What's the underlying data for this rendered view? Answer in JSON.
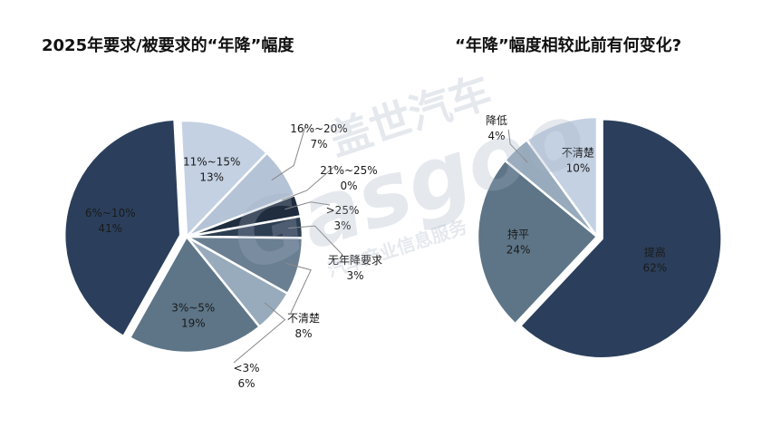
{
  "titles": {
    "left": "2025年要求/被要求的“年降”幅度",
    "right": "“年降”幅度相较此前有何变化?"
  },
  "watermark": {
    "brand_cn": "盖世汽车",
    "brand_en": "Gasgoo",
    "sub": "汽车产业信息服务"
  },
  "colors": {
    "navy": "#2b3f5c",
    "slate": "#5d7587",
    "gray_blue": "#98abbc",
    "light_blue": "#c4d1e3",
    "dark": "#1f2d3f"
  },
  "chart_data": [
    {
      "type": "pie",
      "title": "2025年要求/被要求的“年降”幅度",
      "slices": [
        {
          "label": "6%~10%",
          "value_label": "41%",
          "value": 41,
          "color": "#2b3f5c"
        },
        {
          "label": "3%~5%",
          "value_label": "19%",
          "value": 19,
          "color": "#5d7587"
        },
        {
          "label": "<3%",
          "value_label": "6%",
          "value": 6,
          "color": "#98abbc"
        },
        {
          "label": "不清楚",
          "value_label": "8%",
          "value": 8,
          "color": "#6b7f92"
        },
        {
          "label": "无年降要求",
          "value_label": "3%",
          "value": 3,
          "color": "#2e3e52"
        },
        {
          "label": ">25%",
          "value_label": "3%",
          "value": 3,
          "color": "#1f2d3f"
        },
        {
          "label": "21%~25%",
          "value_label": "0%",
          "value": 0,
          "color": "#3a4a60"
        },
        {
          "label": "16%~20%",
          "value_label": "7%",
          "value": 7,
          "color": "#b5c3d6"
        },
        {
          "label": "11%~15%",
          "value_label": "13%",
          "value": 13,
          "color": "#c4d1e3"
        }
      ]
    },
    {
      "type": "pie",
      "title": "“年降”幅度相较此前有何变化?",
      "slices": [
        {
          "label": "提高",
          "value_label": "62%",
          "value": 62,
          "color": "#2b3f5c"
        },
        {
          "label": "持平",
          "value_label": "24%",
          "value": 24,
          "color": "#5d7587"
        },
        {
          "label": "降低",
          "value_label": "4%",
          "value": 4,
          "color": "#98abbc"
        },
        {
          "label": "不清楚",
          "value_label": "10%",
          "value": 10,
          "color": "#c4d1e3"
        }
      ]
    }
  ]
}
